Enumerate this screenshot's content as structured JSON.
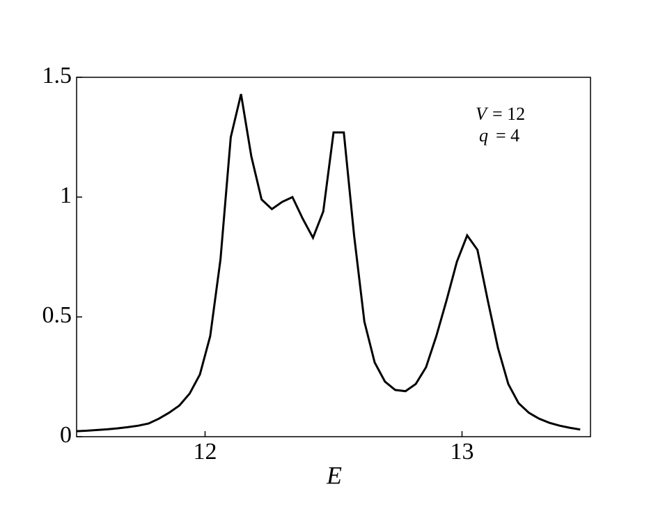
{
  "chart_data": {
    "type": "line",
    "xlabel": "E",
    "annotations": [
      {
        "symbol": "V",
        "text": "= 12"
      },
      {
        "symbol": "q",
        "text": "= 4"
      }
    ],
    "x": [
      11.5,
      11.54,
      11.58,
      11.62,
      11.66,
      11.7,
      11.74,
      11.78,
      11.82,
      11.86,
      11.9,
      11.94,
      11.98,
      12.02,
      12.06,
      12.1,
      12.14,
      12.18,
      12.22,
      12.26,
      12.3,
      12.34,
      12.38,
      12.42,
      12.46,
      12.5,
      12.54,
      12.58,
      12.62,
      12.66,
      12.7,
      12.74,
      12.78,
      12.82,
      12.86,
      12.9,
      12.94,
      12.98,
      13.02,
      13.06,
      13.1,
      13.14,
      13.18,
      13.22,
      13.26,
      13.3,
      13.34,
      13.38,
      13.42,
      13.46
    ],
    "series": [
      {
        "color": "#000000",
        "values": [
          0.023,
          0.025,
          0.028,
          0.031,
          0.035,
          0.04,
          0.046,
          0.055,
          0.075,
          0.1,
          0.13,
          0.18,
          0.26,
          0.42,
          0.74,
          1.25,
          1.43,
          1.17,
          0.99,
          0.95,
          0.98,
          1.0,
          0.91,
          0.83,
          0.94,
          1.27,
          1.27,
          0.84,
          0.48,
          0.31,
          0.23,
          0.195,
          0.19,
          0.22,
          0.29,
          0.42,
          0.57,
          0.73,
          0.84,
          0.78,
          0.57,
          0.37,
          0.22,
          0.14,
          0.1,
          0.075,
          0.058,
          0.046,
          0.037,
          0.03
        ]
      }
    ],
    "xlim": [
      11.5,
      13.5
    ],
    "ylim": [
      0,
      1.5
    ],
    "xticks": [
      12,
      13
    ],
    "yticks": [
      0,
      0.5,
      1,
      1.5
    ],
    "grid": false
  }
}
